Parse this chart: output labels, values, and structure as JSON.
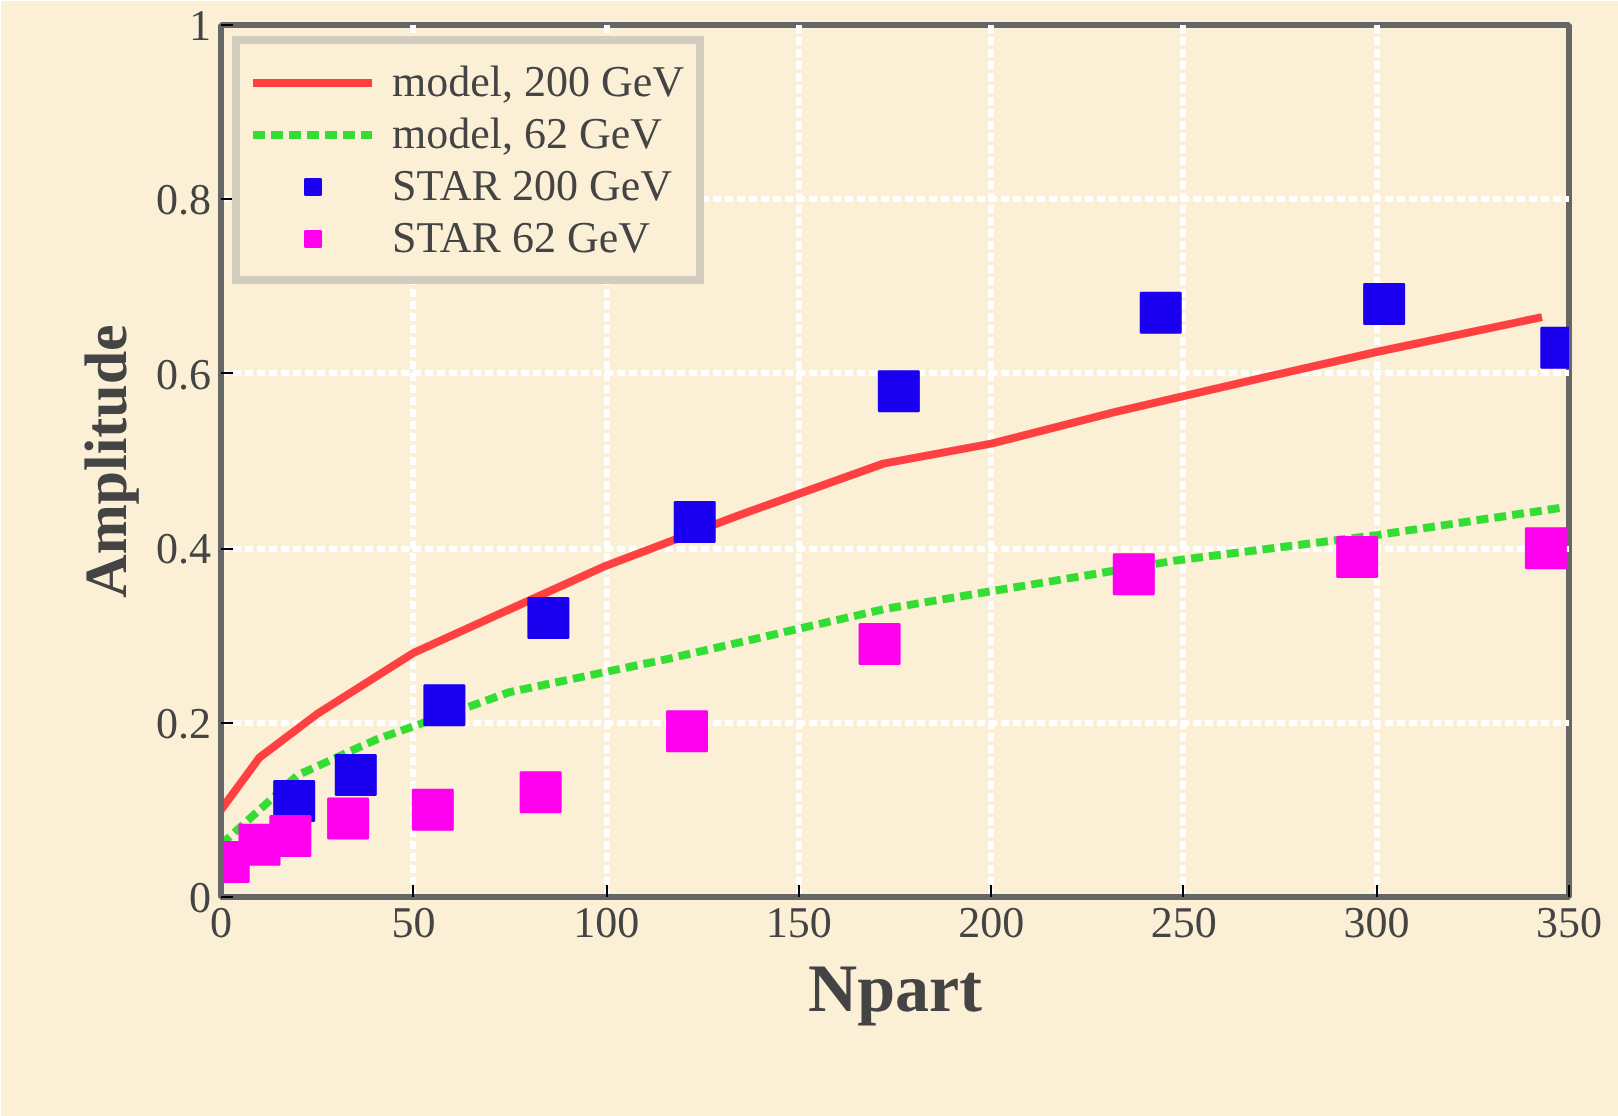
{
  "chart_data": {
    "type": "scatter",
    "xlabel": "Npart",
    "ylabel": "Amplitude",
    "xlim": [
      0,
      350
    ],
    "ylim": [
      0,
      1
    ],
    "xticks": [
      0,
      50,
      100,
      150,
      200,
      250,
      300,
      350
    ],
    "yticks": [
      0,
      {
        "value": 0.2,
        "label": "0.2"
      },
      {
        "value": 0.4,
        "label": "0.4"
      },
      {
        "value": 0.6,
        "label": "0.6"
      },
      {
        "value": 0.8,
        "label": "0.8"
      },
      1
    ],
    "grid": true,
    "legend": "top left",
    "series": [
      {
        "name": "model, 200 GeV",
        "type": "line",
        "line_style": "solid",
        "marker": "none",
        "color": "#ff4040",
        "x": [
          0,
          10,
          25,
          50,
          75,
          100,
          134,
          172,
          200,
          232,
          275,
          300,
          343
        ],
        "values": [
          0.1,
          0.16,
          0.21,
          0.28,
          0.33,
          0.38,
          0.437,
          0.497,
          0.52,
          0.556,
          0.6,
          0.625,
          0.665
        ]
      },
      {
        "name": "model, 62 GeV",
        "type": "line",
        "line_style": "dashed",
        "marker": "none",
        "color": "#33dd33",
        "x": [
          0,
          20,
          40,
          75,
          117,
          172,
          248,
          300,
          349
        ],
        "values": [
          0.06,
          0.14,
          0.18,
          0.235,
          0.274,
          0.33,
          0.386,
          0.415,
          0.447
        ]
      },
      {
        "name": "STAR 200 GeV",
        "marker": "square",
        "color": "#1a00ee",
        "x": [
          19,
          35,
          58,
          85,
          123,
          176,
          244,
          302,
          348
        ],
        "values": [
          0.11,
          0.14,
          0.22,
          0.32,
          0.43,
          0.58,
          0.67,
          0.68,
          0.63
        ]
      },
      {
        "name": "STAR 62 GeV",
        "marker": "square",
        "color": "#ff00ee",
        "x": [
          2,
          10,
          18,
          33,
          55,
          83,
          121,
          171,
          237,
          295,
          344
        ],
        "values": [
          0.04,
          0.06,
          0.07,
          0.09,
          0.1,
          0.12,
          0.19,
          0.29,
          0.37,
          0.39,
          0.4
        ]
      }
    ]
  }
}
